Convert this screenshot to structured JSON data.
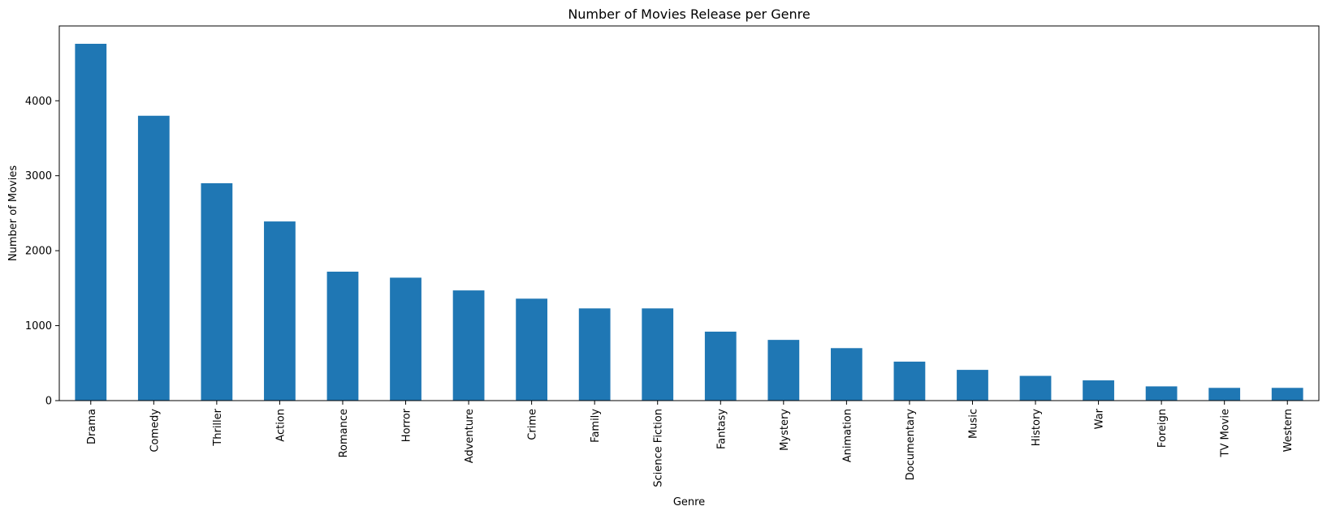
{
  "chart_data": {
    "type": "bar",
    "title": "Number of Movies Release per Genre",
    "xlabel": "Genre",
    "ylabel": "Number of Movies",
    "categories": [
      "Drama",
      "Comedy",
      "Thriller",
      "Action",
      "Romance",
      "Horror",
      "Adventure",
      "Crime",
      "Family",
      "Science Fiction",
      "Fantasy",
      "Mystery",
      "Animation",
      "Documentary",
      "Music",
      "History",
      "War",
      "Foreign",
      "TV Movie",
      "Western"
    ],
    "values": [
      4760,
      3800,
      2900,
      2390,
      1720,
      1640,
      1470,
      1360,
      1230,
      1230,
      920,
      810,
      700,
      520,
      410,
      330,
      270,
      190,
      170,
      170
    ],
    "ylim": [
      0,
      4998
    ],
    "yticks": [
      0,
      1000,
      2000,
      3000,
      4000
    ],
    "grid": false,
    "legend": "none",
    "bar_color": "#1f77b4"
  }
}
